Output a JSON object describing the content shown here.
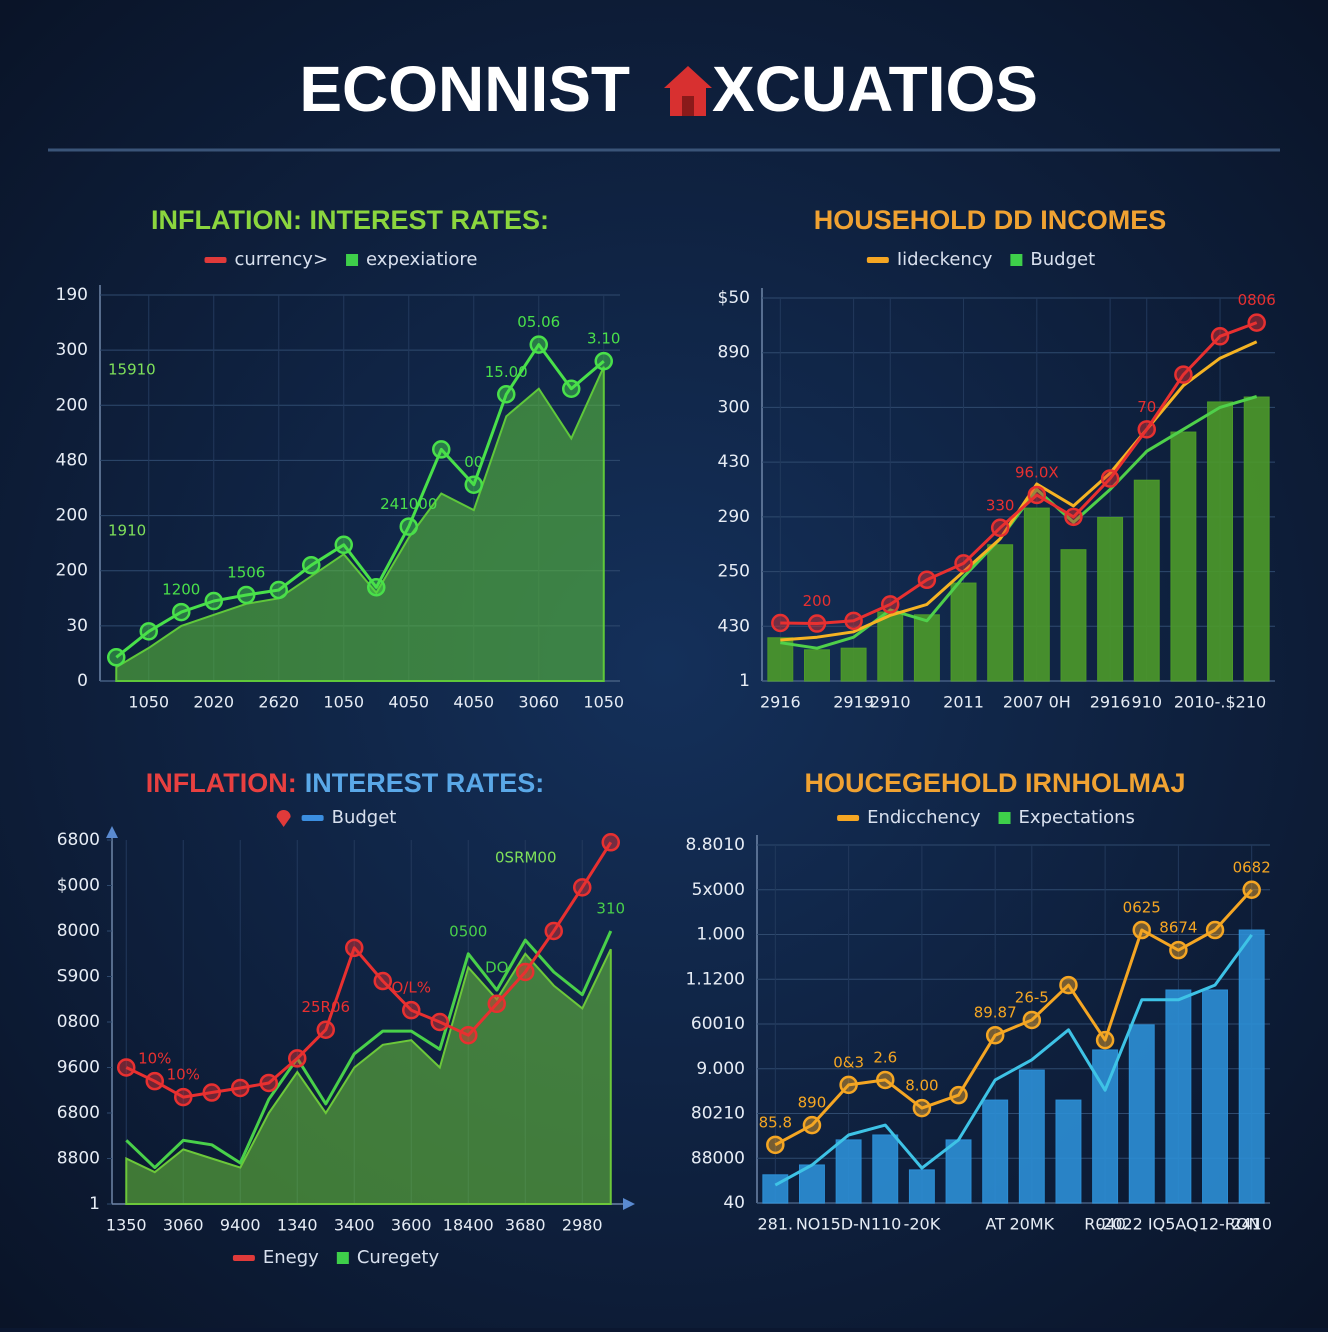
{
  "header": {
    "title_left": "ECONNIST",
    "title_right": "XCUATIOS"
  },
  "chart_data": [
    {
      "type": "line",
      "title": "INFLATION: INTEREST RATES:",
      "title_color": "#8bd63e",
      "legend": [
        {
          "name": "currency>",
          "color": "#e03a3a",
          "swatch": "line"
        },
        {
          "name": "expexiatiore",
          "color": "#3ecf4a",
          "swatch": "square"
        }
      ],
      "categories": [
        null,
        "1050",
        null,
        "2020",
        null,
        "2620",
        null,
        "1050",
        null,
        "4050",
        null,
        "4050",
        null,
        "3060",
        null,
        "1050"
      ],
      "ylim": [
        0,
        7
      ],
      "yticks": [
        0,
        {
          "value": 1,
          "label": "30"
        },
        {
          "value": 2,
          "label": "200"
        },
        {
          "value": 3,
          "label": "200"
        },
        {
          "value": 4,
          "label": "480"
        },
        {
          "value": 5,
          "label": "200"
        },
        {
          "value": 6,
          "label": "300"
        },
        {
          "value": 7,
          "label": "190"
        }
      ],
      "grid": true,
      "annotations": [
        "15910",
        "1910"
      ],
      "series": [
        {
          "kind": "area",
          "color": "#5fc83a",
          "values": [
            0.25,
            0.6,
            1.0,
            1.2,
            1.4,
            1.5,
            1.9,
            2.3,
            1.6,
            2.6,
            3.4,
            3.1,
            4.8,
            5.3,
            4.4,
            5.7
          ]
        },
        {
          "kind": "line",
          "color": "#49e04a",
          "markers": true,
          "values": [
            0.43,
            0.9,
            1.25,
            1.45,
            1.56,
            1.65,
            2.1,
            2.47,
            1.7,
            2.8,
            4.2,
            3.56,
            5.2,
            6.1,
            5.3,
            5.8
          ],
          "labels": [
            null,
            null,
            "1200",
            null,
            "1506",
            null,
            null,
            null,
            null,
            "241000",
            null,
            "00",
            "15.00",
            "05.06",
            null,
            "3.10"
          ]
        }
      ]
    },
    {
      "type": "line",
      "title": "HOUSEHOLD DD INCOMES",
      "title_color": "#f0a232",
      "legend": [
        {
          "name": "Iideckency",
          "color": "#f5a623",
          "swatch": "line"
        },
        {
          "name": "Budget",
          "color": "#3ecf4a",
          "swatch": "square"
        }
      ],
      "categories": [
        "2916",
        null,
        "2919",
        "2910",
        null,
        "2011",
        null,
        "2007 0H",
        null,
        "2916",
        "910",
        null,
        "2010-.$210",
        null
      ],
      "ylim": [
        0,
        7
      ],
      "yticks": [
        {
          "value": 0,
          "label": "1"
        },
        {
          "value": 1,
          "label": "430"
        },
        {
          "value": 2,
          "label": "250"
        },
        {
          "value": 3,
          "label": "290"
        },
        {
          "value": 4,
          "label": "430"
        },
        {
          "value": 5,
          "label": "300"
        },
        {
          "value": 6,
          "label": "890"
        },
        {
          "value": 7,
          "label": "$50"
        }
      ],
      "grid": true,
      "series": [
        {
          "kind": "bar",
          "color": "#4c9a2a",
          "values": [
            0.79,
            0.57,
            0.6,
            1.26,
            1.21,
            1.79,
            2.49,
            3.16,
            2.4,
            2.99,
            3.67,
            4.55,
            5.1,
            5.19
          ]
        },
        {
          "kind": "line",
          "color": "#4fd04a",
          "markers": false,
          "values": [
            0.7,
            0.6,
            0.8,
            1.3,
            1.1,
            1.9,
            2.6,
            3.5,
            2.9,
            3.5,
            4.2,
            4.6,
            5.0,
            5.2
          ]
        },
        {
          "kind": "line",
          "color": "#f5b323",
          "markers": false,
          "values": [
            0.75,
            0.8,
            0.9,
            1.2,
            1.4,
            2.0,
            2.6,
            3.6,
            3.2,
            3.8,
            4.6,
            5.4,
            5.9,
            6.2
          ]
        },
        {
          "kind": "line",
          "color": "#e83030",
          "markers": true,
          "values": [
            1.06,
            1.05,
            1.1,
            1.4,
            1.85,
            2.15,
            2.8,
            3.4,
            3.0,
            3.7,
            4.6,
            5.6,
            6.3,
            6.55
          ],
          "labels": [
            null,
            "200",
            null,
            null,
            null,
            null,
            "330",
            "96.0X",
            null,
            null,
            "70",
            null,
            null,
            "0806"
          ]
        }
      ]
    },
    {
      "type": "line",
      "title_parts": [
        "INFLATION:",
        "INTEREST RATES:"
      ],
      "title_colors": [
        "#e84040",
        "#5aa8e8"
      ],
      "legend": [
        {
          "color": "#e03a3a",
          "swatch": "pin"
        },
        {
          "name": "Budget",
          "color": "#3b8ee0",
          "swatch": "line"
        }
      ],
      "legend2": [
        {
          "name": "Enegy",
          "color": "#e03a3a",
          "swatch": "line"
        },
        {
          "name": "Curegety",
          "color": "#3ecf4a",
          "swatch": "square"
        }
      ],
      "categories": [
        "1350",
        null,
        "3060",
        null,
        "9400",
        null,
        "1340",
        null,
        "3400",
        null,
        "3600",
        null,
        "18400",
        null,
        "3680",
        null,
        "2980",
        null
      ],
      "ylim": [
        0,
        8
      ],
      "yticks": [
        {
          "value": 0,
          "label": "1"
        },
        {
          "value": 1,
          "label": "8800"
        },
        {
          "value": 2,
          "label": "6800"
        },
        {
          "value": 3,
          "label": "9600"
        },
        {
          "value": 4,
          "label": "0800"
        },
        {
          "value": 5,
          "label": "S900"
        },
        {
          "value": 6,
          "label": "8000"
        },
        {
          "value": 7,
          "label": "$000"
        },
        {
          "value": 8,
          "label": "6800"
        }
      ],
      "grid": false,
      "annotations": [
        "0SRM00"
      ],
      "series": [
        {
          "kind": "area",
          "color": "#6cc83a",
          "values": [
            1.0,
            0.7,
            1.2,
            1.0,
            0.8,
            2.0,
            2.9,
            2.0,
            3.0,
            3.5,
            3.6,
            3.0,
            5.2,
            4.5,
            5.5,
            4.8,
            4.3,
            5.6
          ]
        },
        {
          "kind": "line",
          "color": "#49d04a",
          "markers": false,
          "values": [
            1.4,
            0.8,
            1.4,
            1.3,
            0.9,
            2.3,
            3.2,
            2.2,
            3.3,
            3.8,
            3.8,
            3.4,
            5.5,
            4.7,
            5.8,
            5.1,
            4.6,
            6.0
          ],
          "labels": [
            null,
            null,
            null,
            null,
            null,
            null,
            null,
            null,
            null,
            null,
            null,
            null,
            "0500",
            "DO",
            null,
            null,
            null,
            "310"
          ]
        },
        {
          "kind": "line",
          "color": "#e83030",
          "markers": true,
          "values": [
            3.0,
            2.7,
            2.35,
            2.45,
            2.55,
            2.66,
            3.2,
            3.83,
            5.63,
            4.9,
            4.26,
            4.0,
            3.71,
            4.4,
            5.1,
            6.0,
            6.96,
            7.95
          ],
          "labels": [
            null,
            "10%",
            "10%",
            null,
            null,
            null,
            null,
            "25R06",
            null,
            null,
            "O/L%",
            null,
            null,
            null,
            null,
            null,
            null,
            null
          ]
        }
      ]
    },
    {
      "type": "line",
      "title": "HOUCEGEHOLD IRNHOLMAJ",
      "title_color": "#f0a232",
      "legend": [
        {
          "name": "Endicchency",
          "color": "#f5a623",
          "swatch": "line"
        },
        {
          "name": "Expectations",
          "color": "#3ecf4a",
          "swatch": "square"
        }
      ],
      "categories": [
        "281.",
        null,
        "NO15D-N110",
        null,
        "-20K",
        null,
        "AT",
        "20MK",
        null,
        "R040",
        null,
        "-2022 IQ5AQ12-RON",
        null,
        "2410"
      ],
      "ylim": [
        0,
        8
      ],
      "yticks": [
        {
          "value": 0,
          "label": "40"
        },
        {
          "value": 1,
          "label": "88000"
        },
        {
          "value": 2,
          "label": "80210"
        },
        {
          "value": 3,
          "label": "9.000"
        },
        {
          "value": 4,
          "label": "60010"
        },
        {
          "value": 5,
          "label": "1.1200"
        },
        {
          "value": 6,
          "label": "1.000"
        },
        {
          "value": 7,
          "label": "5x000"
        },
        {
          "value": 8,
          "label": "8.8010"
        }
      ],
      "grid": true,
      "series": [
        {
          "kind": "bar",
          "color": "#2c8fd6",
          "values": [
            0.63,
            0.85,
            1.41,
            1.52,
            0.74,
            1.41,
            2.3,
            2.97,
            2.3,
            3.42,
            3.98,
            4.76,
            4.76,
            6.1
          ]
        },
        {
          "kind": "line",
          "color": "#3ec3e6",
          "markers": false,
          "values": [
            0.4,
            0.85,
            1.52,
            1.74,
            0.78,
            1.41,
            2.75,
            3.2,
            3.87,
            2.52,
            4.54,
            4.54,
            4.87,
            5.99
          ]
        },
        {
          "kind": "line",
          "color": "#f5a623",
          "markers": true,
          "values": [
            1.3,
            1.74,
            2.64,
            2.75,
            2.12,
            2.41,
            3.75,
            4.09,
            4.87,
            3.64,
            6.1,
            5.65,
            6.1,
            7.0
          ],
          "labels": [
            "85.8",
            "890",
            "0&3",
            "2.6",
            "8.00",
            null,
            "89.87",
            "26-5",
            null,
            null,
            "0625",
            "8674",
            null,
            "0682"
          ]
        }
      ]
    }
  ]
}
